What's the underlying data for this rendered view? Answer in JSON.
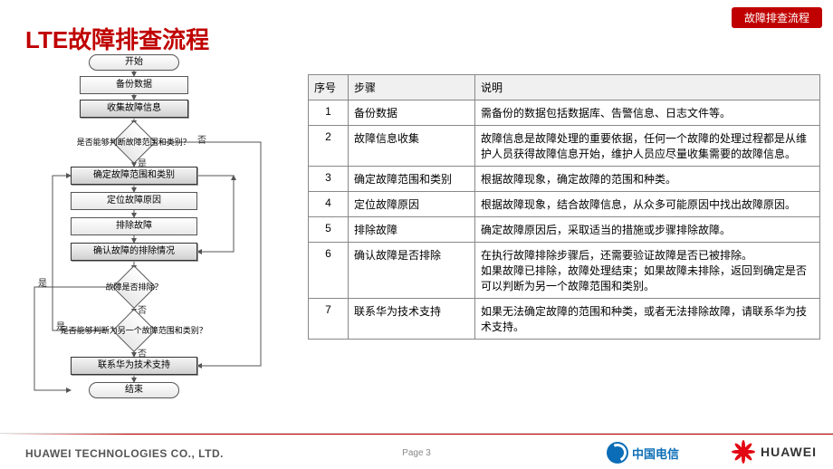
{
  "badge": "故障排查流程",
  "title": "LTE故障排查流程",
  "flowchart": {
    "nodes": {
      "start": "开始",
      "backup": "备份数据",
      "collect": "收集故障信息",
      "d1": "是否能够判断故障范围和类别？",
      "scope": "确定故障范围和类别",
      "locate": "定位故障原因",
      "exclude": "排除故障",
      "confirm": "确认故障的排除情况",
      "d2": "故障是否排除？",
      "d3": "是否能够判断为另一个故障范围和类别？",
      "contact": "联系华为技术支持",
      "end": "结束"
    },
    "labels": {
      "yes": "是",
      "no": "否"
    }
  },
  "table": {
    "headers": [
      "序号",
      "步骤",
      "说明"
    ],
    "rows": [
      {
        "n": "1",
        "step": "备份数据",
        "desc": "需备份的数据包括数据库、告警信息、日志文件等。"
      },
      {
        "n": "2",
        "step": "故障信息收集",
        "desc": "故障信息是故障处理的重要依据，任何一个故障的处理过程都是从维护人员获得故障信息开始，维护人员应尽量收集需要的故障信息。"
      },
      {
        "n": "3",
        "step": "确定故障范围和类别",
        "desc": "根据故障现象，确定故障的范围和种类。"
      },
      {
        "n": "4",
        "step": "定位故障原因",
        "desc": "根据故障现象，结合故障信息，从众多可能原因中找出故障原因。"
      },
      {
        "n": "5",
        "step": "排除故障",
        "desc": "确定故障原因后，采取适当的措施或步骤排除故障。"
      },
      {
        "n": "6",
        "step": "确认故障是否排除",
        "desc": "在执行故障排除步骤后，还需要验证故障是否已被排除。\n如果故障已排除，故障处理结束；如果故障未排除，返回到确定是否可以判断为另一个故障范围和类别。"
      },
      {
        "n": "7",
        "step": "联系华为技术支持",
        "desc": "如果无法确定故障的范围和种类，或者无法排除故障，请联系华为技术支持。"
      }
    ]
  },
  "footer": {
    "company": "HUAWEI TECHNOLOGIES CO., LTD.",
    "page": "Page 3",
    "telecom": "中国电信",
    "huawei": "HUAWEI"
  },
  "colors": {
    "accent": "#c00000",
    "telecom": "#0b6db7",
    "huaweiRed": "#e30613"
  }
}
